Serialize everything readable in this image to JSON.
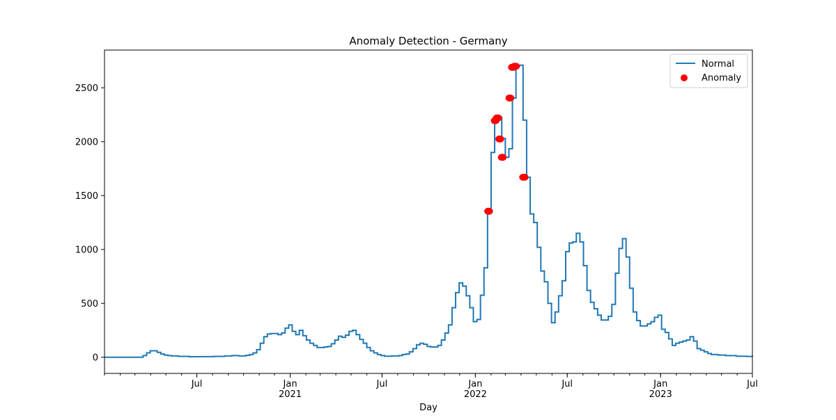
{
  "chart_data": {
    "type": "line",
    "title": "Anomaly Detection - Germany",
    "xlabel": "Day",
    "ylabel": "",
    "x_range": [
      "2020-01-01",
      "2023-07-01"
    ],
    "ylim": [
      -150,
      2850
    ],
    "grid": false,
    "legend_position": "top-right",
    "x_major_ticks": [
      {
        "date": "2020-07-01",
        "label": "Jul",
        "sublabel": ""
      },
      {
        "date": "2021-01-01",
        "label": "Jan",
        "sublabel": "2021"
      },
      {
        "date": "2021-07-01",
        "label": "Jul",
        "sublabel": ""
      },
      {
        "date": "2022-01-01",
        "label": "Jan",
        "sublabel": "2022"
      },
      {
        "date": "2022-07-01",
        "label": "Jul",
        "sublabel": ""
      },
      {
        "date": "2023-01-01",
        "label": "Jan",
        "sublabel": "2023"
      },
      {
        "date": "2023-07-01",
        "label": "Jul",
        "sublabel": ""
      }
    ],
    "y_ticks": [
      0,
      500,
      1000,
      1500,
      2000,
      2500
    ],
    "colors": {
      "normal": "#1f77b4",
      "anomaly": "#ff0000"
    },
    "series": [
      {
        "name": "Normal",
        "style": "step-line",
        "points": [
          [
            "2020-01-01",
            0
          ],
          [
            "2020-03-10",
            0
          ],
          [
            "2020-03-17",
            15
          ],
          [
            "2020-03-24",
            40
          ],
          [
            "2020-03-31",
            60
          ],
          [
            "2020-04-14",
            45
          ],
          [
            "2020-04-21",
            30
          ],
          [
            "2020-04-28",
            20
          ],
          [
            "2020-05-05",
            15
          ],
          [
            "2020-05-12",
            12
          ],
          [
            "2020-05-26",
            8
          ],
          [
            "2020-06-16",
            5
          ],
          [
            "2020-07-07",
            6
          ],
          [
            "2020-08-04",
            8
          ],
          [
            "2020-08-25",
            12
          ],
          [
            "2020-09-08",
            15
          ],
          [
            "2020-09-22",
            12
          ],
          [
            "2020-10-06",
            18
          ],
          [
            "2020-10-13",
            25
          ],
          [
            "2020-10-20",
            40
          ],
          [
            "2020-10-27",
            70
          ],
          [
            "2020-11-03",
            130
          ],
          [
            "2020-11-10",
            190
          ],
          [
            "2020-11-17",
            215
          ],
          [
            "2020-11-24",
            220
          ],
          [
            "2020-12-08",
            210
          ],
          [
            "2020-12-15",
            225
          ],
          [
            "2020-12-22",
            270
          ],
          [
            "2020-12-29",
            300
          ],
          [
            "2021-01-05",
            240
          ],
          [
            "2021-01-12",
            210
          ],
          [
            "2021-01-19",
            250
          ],
          [
            "2021-01-26",
            200
          ],
          [
            "2021-02-02",
            160
          ],
          [
            "2021-02-09",
            130
          ],
          [
            "2021-02-16",
            110
          ],
          [
            "2021-02-23",
            90
          ],
          [
            "2021-03-09",
            95
          ],
          [
            "2021-03-16",
            100
          ],
          [
            "2021-03-23",
            125
          ],
          [
            "2021-03-30",
            160
          ],
          [
            "2021-04-06",
            195
          ],
          [
            "2021-04-13",
            185
          ],
          [
            "2021-04-20",
            205
          ],
          [
            "2021-04-27",
            240
          ],
          [
            "2021-05-04",
            250
          ],
          [
            "2021-05-11",
            210
          ],
          [
            "2021-05-18",
            165
          ],
          [
            "2021-05-25",
            130
          ],
          [
            "2021-06-01",
            90
          ],
          [
            "2021-06-08",
            60
          ],
          [
            "2021-06-15",
            40
          ],
          [
            "2021-06-22",
            25
          ],
          [
            "2021-06-29",
            15
          ],
          [
            "2021-07-06",
            10
          ],
          [
            "2021-07-20",
            12
          ],
          [
            "2021-08-03",
            15
          ],
          [
            "2021-08-10",
            25
          ],
          [
            "2021-08-17",
            30
          ],
          [
            "2021-08-24",
            50
          ],
          [
            "2021-08-31",
            80
          ],
          [
            "2021-09-07",
            115
          ],
          [
            "2021-09-14",
            130
          ],
          [
            "2021-09-21",
            120
          ],
          [
            "2021-09-28",
            100
          ],
          [
            "2021-10-05",
            95
          ],
          [
            "2021-10-19",
            110
          ],
          [
            "2021-10-26",
            160
          ],
          [
            "2021-11-02",
            225
          ],
          [
            "2021-11-09",
            300
          ],
          [
            "2021-11-16",
            460
          ],
          [
            "2021-11-23",
            600
          ],
          [
            "2021-11-30",
            690
          ],
          [
            "2021-12-07",
            660
          ],
          [
            "2021-12-14",
            570
          ],
          [
            "2021-12-21",
            460
          ],
          [
            "2021-12-28",
            330
          ],
          [
            "2022-01-04",
            350
          ],
          [
            "2022-01-11",
            575
          ],
          [
            "2022-01-18",
            830
          ],
          [
            "2022-01-25",
            1360
          ],
          [
            "2022-02-01",
            1900
          ],
          [
            "2022-02-08",
            2200
          ],
          [
            "2022-02-15",
            2225
          ],
          [
            "2022-02-22",
            2030
          ],
          [
            "2022-03-01",
            1855
          ],
          [
            "2022-03-08",
            1935
          ],
          [
            "2022-03-15",
            2405
          ],
          [
            "2022-03-22",
            2700
          ],
          [
            "2022-03-29",
            2710
          ],
          [
            "2022-04-05",
            2200
          ],
          [
            "2022-04-12",
            1670
          ],
          [
            "2022-04-19",
            1330
          ],
          [
            "2022-04-26",
            1250
          ],
          [
            "2022-05-03",
            1020
          ],
          [
            "2022-05-10",
            800
          ],
          [
            "2022-05-17",
            700
          ],
          [
            "2022-05-24",
            500
          ],
          [
            "2022-05-31",
            320
          ],
          [
            "2022-06-07",
            420
          ],
          [
            "2022-06-14",
            570
          ],
          [
            "2022-06-21",
            710
          ],
          [
            "2022-06-28",
            980
          ],
          [
            "2022-07-05",
            1060
          ],
          [
            "2022-07-12",
            1070
          ],
          [
            "2022-07-19",
            1150
          ],
          [
            "2022-07-26",
            1070
          ],
          [
            "2022-08-02",
            850
          ],
          [
            "2022-08-09",
            620
          ],
          [
            "2022-08-16",
            510
          ],
          [
            "2022-08-23",
            450
          ],
          [
            "2022-08-30",
            390
          ],
          [
            "2022-09-06",
            345
          ],
          [
            "2022-09-20",
            380
          ],
          [
            "2022-09-27",
            490
          ],
          [
            "2022-10-04",
            780
          ],
          [
            "2022-10-11",
            1010
          ],
          [
            "2022-10-18",
            1100
          ],
          [
            "2022-10-25",
            930
          ],
          [
            "2022-11-01",
            640
          ],
          [
            "2022-11-08",
            420
          ],
          [
            "2022-11-15",
            340
          ],
          [
            "2022-11-22",
            290
          ],
          [
            "2022-12-06",
            310
          ],
          [
            "2022-12-13",
            330
          ],
          [
            "2022-12-20",
            370
          ],
          [
            "2022-12-27",
            390
          ],
          [
            "2023-01-03",
            260
          ],
          [
            "2023-01-10",
            230
          ],
          [
            "2023-01-17",
            170
          ],
          [
            "2023-01-24",
            110
          ],
          [
            "2023-01-31",
            130
          ],
          [
            "2023-02-07",
            140
          ],
          [
            "2023-02-14",
            150
          ],
          [
            "2023-02-21",
            160
          ],
          [
            "2023-02-28",
            190
          ],
          [
            "2023-03-07",
            150
          ],
          [
            "2023-03-14",
            80
          ],
          [
            "2023-03-21",
            65
          ],
          [
            "2023-03-28",
            50
          ],
          [
            "2023-04-04",
            35
          ],
          [
            "2023-04-11",
            25
          ],
          [
            "2023-04-25",
            20
          ],
          [
            "2023-05-09",
            15
          ],
          [
            "2023-05-30",
            10
          ],
          [
            "2023-06-20",
            7
          ],
          [
            "2023-07-01",
            5
          ]
        ]
      },
      {
        "name": "Anomaly",
        "style": "scatter",
        "points": [
          [
            "2022-01-26",
            1355
          ],
          [
            "2022-01-28",
            1355
          ],
          [
            "2022-02-08",
            2195
          ],
          [
            "2022-02-10",
            2195
          ],
          [
            "2022-02-12",
            2220
          ],
          [
            "2022-02-15",
            2220
          ],
          [
            "2022-02-17",
            2025
          ],
          [
            "2022-02-19",
            2025
          ],
          [
            "2022-02-22",
            1855
          ],
          [
            "2022-02-24",
            1855
          ],
          [
            "2022-03-09",
            2405
          ],
          [
            "2022-03-11",
            2405
          ],
          [
            "2022-03-14",
            2690
          ],
          [
            "2022-03-17",
            2690
          ],
          [
            "2022-03-19",
            2700
          ],
          [
            "2022-03-22",
            2700
          ],
          [
            "2022-04-05",
            1670
          ],
          [
            "2022-04-08",
            1670
          ]
        ]
      }
    ]
  }
}
